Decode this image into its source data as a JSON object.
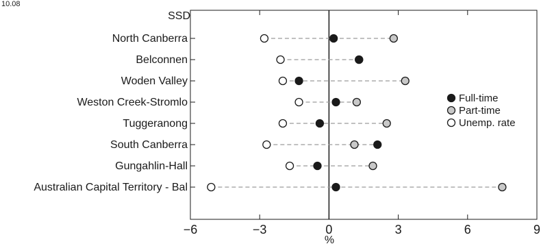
{
  "chart_data": {
    "type": "scatter",
    "title": "",
    "corner_text": "10.08",
    "y_header": "SSD",
    "xlabel": "%",
    "xlim": [
      -6,
      9
    ],
    "xticks": [
      -6,
      -3,
      0,
      3,
      6,
      9
    ],
    "xtick_labels": [
      "−6",
      "−3",
      "0",
      "3",
      "6",
      "9"
    ],
    "categories": [
      "North Canberra",
      "Belconnen",
      "Woden Valley",
      "Weston Creek-Stromlo",
      "Tuggeranong",
      "South Canberra",
      "Gungahlin-Hall",
      "Australian Capital Territory - Bal"
    ],
    "series": [
      {
        "name": "Full-time",
        "color": "#1a1a1a",
        "values": [
          0.2,
          1.3,
          -1.3,
          0.3,
          -0.4,
          2.1,
          -0.5,
          0.3
        ]
      },
      {
        "name": "Part-time",
        "color": "#c8c8c8",
        "values": [
          2.8,
          1.3,
          3.3,
          1.2,
          2.5,
          1.1,
          1.9,
          7.5
        ]
      },
      {
        "name": "Unemp. rate",
        "color": "#ffffff",
        "values": [
          -2.8,
          -2.1,
          -2.0,
          -1.3,
          -2.0,
          -2.7,
          -1.7,
          -5.1
        ]
      }
    ],
    "legend_position": "right",
    "grid": false
  }
}
